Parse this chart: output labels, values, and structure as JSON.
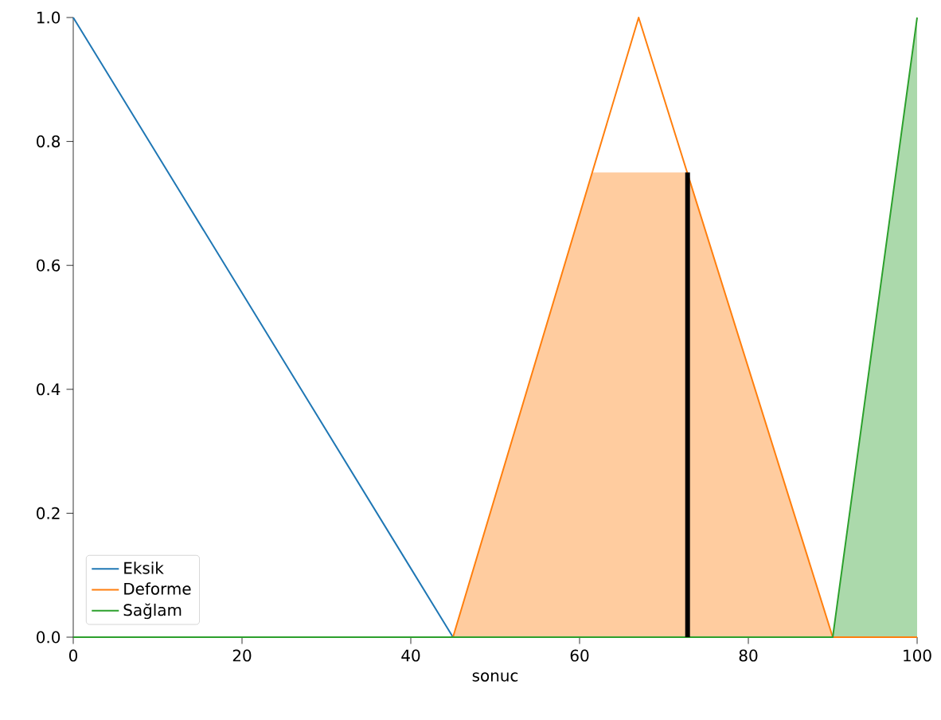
{
  "chart_data": {
    "type": "line",
    "xlabel": "sonuc",
    "xlim": [
      0,
      100
    ],
    "ylim": [
      0,
      1.0
    ],
    "xticks": [
      0,
      20,
      40,
      60,
      80,
      100
    ],
    "yticks": [
      {
        "value": 0,
        "label": "0.0"
      },
      {
        "value": 0.2,
        "label": "0.2"
      },
      {
        "value": 0.4,
        "label": "0.4"
      },
      {
        "value": 0.6,
        "label": "0.6"
      },
      {
        "value": 0.8,
        "label": "0.8"
      },
      {
        "value": 1.0,
        "label": "1.0"
      }
    ],
    "legend": "bottom left",
    "series": [
      {
        "type": "area",
        "color": "#ffcc9f",
        "x": [
          45,
          61.5,
          72.8,
          90
        ],
        "values": [
          0,
          0.75,
          0.75,
          0
        ]
      },
      {
        "type": "area",
        "color": "#abd9ab",
        "x": [
          90,
          100
        ],
        "values": [
          0,
          1
        ]
      },
      {
        "name": "Eksik",
        "color": "#1f77b4",
        "x": [
          0,
          45,
          100
        ],
        "values": [
          1,
          0,
          0
        ]
      },
      {
        "name": "Deforme",
        "color": "#ff7f0e",
        "x": [
          0,
          45,
          67,
          90,
          100
        ],
        "values": [
          0,
          0,
          1,
          0,
          0
        ]
      },
      {
        "name": "Sağlam",
        "color": "#2ca02c",
        "x": [
          0,
          90,
          100
        ],
        "values": [
          0,
          0,
          1
        ]
      },
      {
        "color": "#000000",
        "x": [
          72.8,
          72.8
        ],
        "values": [
          0,
          0.75
        ]
      }
    ]
  }
}
